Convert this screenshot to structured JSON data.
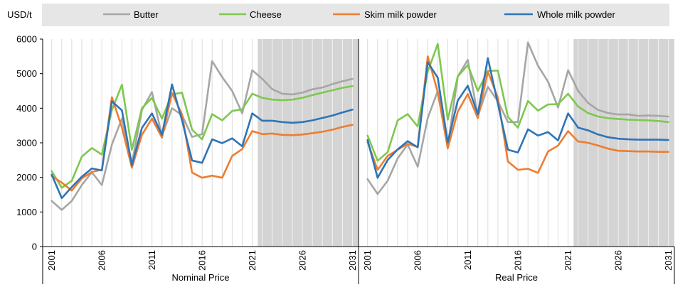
{
  "chart_data": {
    "type": "line",
    "unit_label": "USD/t",
    "ylim": [
      0,
      6000
    ],
    "yticks": [
      0,
      1000,
      2000,
      3000,
      4000,
      5000,
      6000
    ],
    "x_tick_labels": [
      "2001",
      "2006",
      "2011",
      "2016",
      "2021",
      "2026",
      "2031"
    ],
    "projection_shading_from": 2022,
    "legend": [
      {
        "name": "Butter",
        "color": "#a6a6a6"
      },
      {
        "name": "Cheese",
        "color": "#7ec850"
      },
      {
        "name": "Skim milk powder",
        "color": "#ed7d31"
      },
      {
        "name": "Whole milk powder",
        "color": "#2e75b6"
      }
    ],
    "panels": [
      {
        "title": "Nominal Price",
        "x": [
          2001,
          2002,
          2003,
          2004,
          2005,
          2006,
          2007,
          2008,
          2009,
          2010,
          2011,
          2012,
          2013,
          2014,
          2015,
          2016,
          2017,
          2018,
          2019,
          2020,
          2021,
          2022,
          2023,
          2024,
          2025,
          2026,
          2027,
          2028,
          2029,
          2030,
          2031
        ],
        "series": [
          {
            "name": "Butter",
            "values": [
              1320,
              1060,
              1320,
              1780,
              2150,
              1780,
              2950,
              3700,
              2400,
              3950,
              4470,
              3200,
              4000,
              3800,
              3170,
              3250,
              5360,
              4900,
              4500,
              3850,
              5100,
              4850,
              4550,
              4420,
              4400,
              4450,
              4550,
              4600,
              4700,
              4780,
              4850
            ]
          },
          {
            "name": "Cheese",
            "values": [
              2180,
              1700,
              1900,
              2600,
              2850,
              2660,
              3950,
              4680,
              2800,
              4000,
              4300,
              3700,
              4400,
              4450,
              3380,
              3100,
              3830,
              3650,
              3920,
              3970,
              4420,
              4300,
              4250,
              4230,
              4250,
              4300,
              4380,
              4450,
              4520,
              4590,
              4640
            ]
          },
          {
            "name": "Skim milk powder",
            "values": [
              2040,
              1850,
              1620,
              1970,
              2160,
              2220,
              4320,
              3440,
              2280,
              3230,
              3700,
              3150,
              4440,
              3820,
              2140,
              1990,
              2050,
              1990,
              2620,
              2820,
              3340,
              3250,
              3270,
              3230,
              3220,
              3240,
              3280,
              3320,
              3380,
              3460,
              3520
            ]
          },
          {
            "name": "Whole milk powder",
            "values": [
              2080,
              1400,
              1720,
              2020,
              2260,
              2200,
              4200,
              3940,
              2350,
              3430,
              3850,
              3230,
              4690,
              3650,
              2490,
              2420,
              3100,
              2990,
              3130,
              2900,
              3850,
              3640,
              3640,
              3600,
              3580,
              3600,
              3650,
              3720,
              3790,
              3880,
              3960
            ]
          }
        ]
      },
      {
        "title": "Real Price",
        "x": [
          2001,
          2002,
          2003,
          2004,
          2005,
          2006,
          2007,
          2008,
          2009,
          2010,
          2011,
          2012,
          2013,
          2014,
          2015,
          2016,
          2017,
          2018,
          2019,
          2020,
          2021,
          2022,
          2023,
          2024,
          2025,
          2026,
          2027,
          2028,
          2029,
          2030,
          2031
        ],
        "series": [
          {
            "name": "Butter",
            "values": [
              1950,
              1520,
              1900,
              2550,
              2950,
              2310,
              3720,
              4500,
              2900,
              4920,
              5400,
              3770,
              4620,
              4200,
              3600,
              3600,
              5900,
              5230,
              4770,
              4020,
              5100,
              4500,
              4150,
              3950,
              3860,
              3820,
              3820,
              3780,
              3790,
              3780,
              3760
            ]
          },
          {
            "name": "Cheese",
            "values": [
              3210,
              2480,
              2730,
              3650,
              3830,
              3470,
              5060,
              5860,
              3670,
              4920,
              5250,
              4500,
              5080,
              5090,
              3750,
              3440,
              4210,
              3930,
              4110,
              4120,
              4420,
              4050,
              3860,
              3760,
              3710,
              3690,
              3670,
              3660,
              3650,
              3630,
              3600
            ]
          },
          {
            "name": "Skim milk powder",
            "values": [
              3020,
              2220,
              2620,
              2800,
              2970,
              2880,
              5500,
              4460,
              2840,
              3900,
              4410,
              3710,
              5060,
              4300,
              2460,
              2220,
              2250,
              2130,
              2750,
              2920,
              3340,
              3040,
              3000,
              2920,
              2830,
              2770,
              2760,
              2750,
              2750,
              2740,
              2740
            ]
          },
          {
            "name": "Whole milk powder",
            "values": [
              3080,
              1990,
              2500,
              2810,
              3050,
              2870,
              5330,
              4880,
              3010,
              4220,
              4650,
              3830,
              5450,
              4130,
              2800,
              2720,
              3390,
              3210,
              3310,
              3070,
              3850,
              3440,
              3360,
              3240,
              3160,
              3120,
              3100,
              3090,
              3090,
              3090,
              3080
            ]
          }
        ]
      }
    ]
  }
}
